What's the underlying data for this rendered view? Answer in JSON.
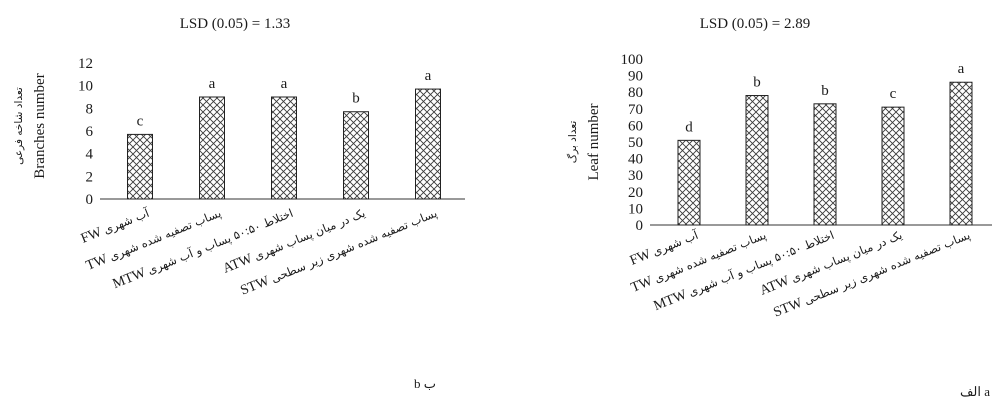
{
  "categories_display": [
    {
      "code": "FW",
      "persian": "آب شهری"
    },
    {
      "code": "TW",
      "persian": "پساب تصفیه شده شهری"
    },
    {
      "code": "MTW",
      "persian": "اختلاط ۵۰:۵۰ پساب و آب شهری"
    },
    {
      "code": "ATW",
      "persian": "یک در میان پساب شهری"
    },
    {
      "code": "STW",
      "persian": "پساب تصفیه شده شهری زیر سطحی"
    }
  ],
  "chart_data": [
    {
      "type": "bar",
      "title": "LSD (0.05) = 1.33",
      "ylabel": "Branches number",
      "ylabel_persian": "تعداد شاخه فرعی",
      "panel_label": "b ب",
      "categories": [
        "FW",
        "TW",
        "MTW",
        "ATW",
        "STW"
      ],
      "values": [
        5.7,
        9.0,
        9.0,
        7.7,
        9.7
      ],
      "letters": [
        "c",
        "a",
        "a",
        "b",
        "a"
      ],
      "ylim": [
        0,
        12
      ],
      "yticks": [
        0,
        2,
        4,
        6,
        8,
        10,
        12
      ],
      "grid": false,
      "bar_pattern": "crosshatch"
    },
    {
      "type": "bar",
      "title": "LSD (0.05) = 2.89",
      "ylabel": "Leaf number",
      "ylabel_persian": "تعداد برگ",
      "panel_label": "الف a",
      "categories": [
        "FW",
        "TW",
        "MTW",
        "ATW",
        "STW"
      ],
      "values": [
        51,
        78,
        73,
        71,
        86
      ],
      "letters": [
        "d",
        "b",
        "b",
        "c",
        "a"
      ],
      "ylim": [
        0,
        100
      ],
      "yticks": [
        0,
        10,
        20,
        30,
        40,
        50,
        60,
        70,
        80,
        90,
        100
      ],
      "grid": false,
      "bar_pattern": "crosshatch"
    }
  ]
}
